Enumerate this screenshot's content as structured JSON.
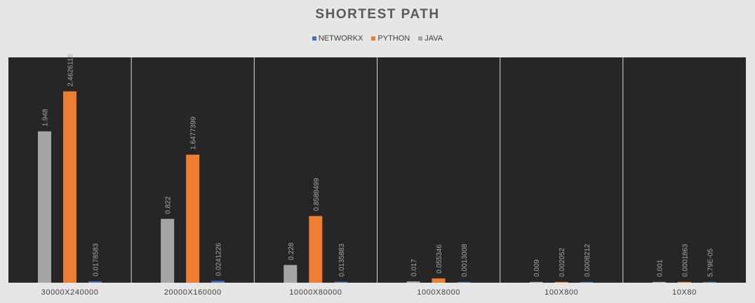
{
  "chart_data": {
    "type": "bar",
    "title": "SHORTEST PATH",
    "xlabel": "",
    "ylabel": "",
    "ylim": [
      0,
      2.9
    ],
    "grid": false,
    "legend_position": "top",
    "categories": [
      "30000X240000",
      "20000X160000",
      "10000X80000",
      "1000X8000",
      "100X800",
      "10X80"
    ],
    "series": [
      {
        "name": "JAVA",
        "color": "#a5a5a5",
        "values": [
          1.948,
          0.822,
          0.228,
          0.017,
          0.009,
          0.001
        ],
        "labels": [
          "1.948",
          "0.822",
          "0.228",
          "0.017",
          "0.009",
          "0.001"
        ]
      },
      {
        "name": "PYTHON",
        "color": "#ed7d31",
        "values": [
          2.4626118,
          1.6477399,
          0.8588499,
          0.055346,
          0.002052,
          0.0001863
        ],
        "labels": [
          "2.4626118",
          "1.6477399",
          "0.8588499",
          "0.055346",
          "0.002052",
          "0.0001863"
        ]
      },
      {
        "name": "NETWORKX",
        "color": "#4472c4",
        "values": [
          0.0178583,
          0.0241226,
          0.0135883,
          0.0013008,
          0.0008212,
          5.79e-05
        ],
        "labels": [
          "0.0178583",
          "0.0241226",
          "0.0135883",
          "0.0013008",
          "0.0008212",
          "5.79E-05"
        ]
      }
    ],
    "legend_order": [
      "NETWORKX",
      "PYTHON",
      "JAVA"
    ]
  },
  "style": {
    "plot_background": "#262626",
    "page_background": "#e7e6e6",
    "separator_color": "#d9d9d9",
    "title_color": "#595959",
    "label_color": "#a6a6a6",
    "tick_color": "#404040"
  }
}
